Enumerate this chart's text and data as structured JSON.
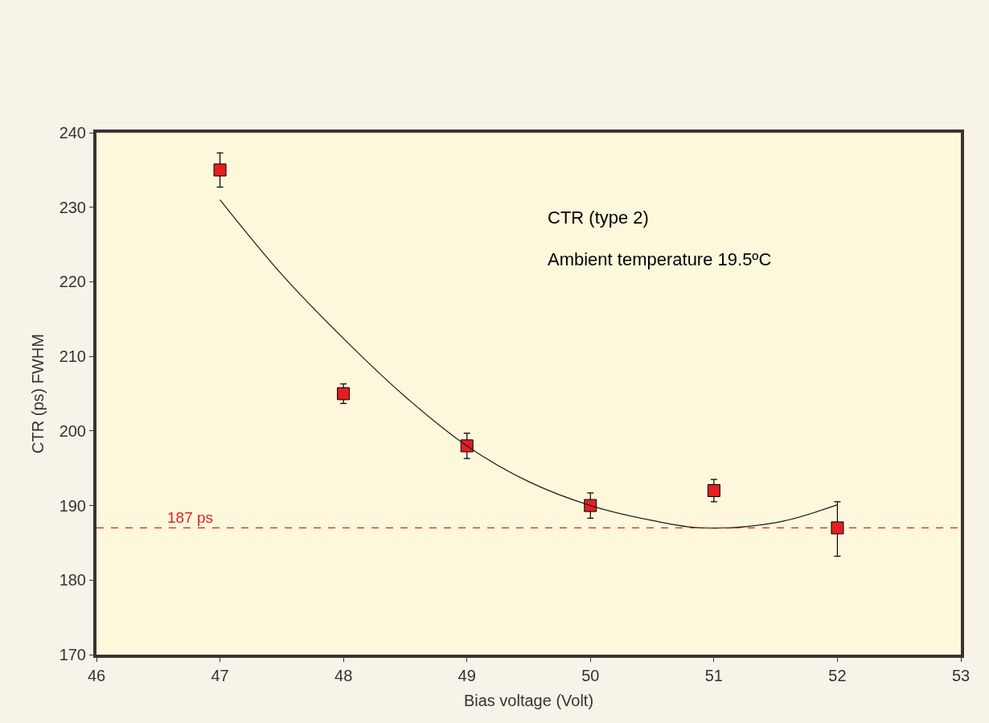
{
  "chart_data": {
    "type": "scatter",
    "xlabel": "Bias voltage (Volt)",
    "ylabel": "CTR (ps) FWHM",
    "annotations": [
      "CTR (type 2)",
      "Ambient temperature 19.5ºC"
    ],
    "series": [
      {
        "color": "#e31e24",
        "marker": "square",
        "x": [
          47,
          48,
          49,
          50,
          51,
          52
        ],
        "values": [
          235,
          205,
          198,
          190,
          192,
          187
        ],
        "errors": [
          2.3,
          1.3,
          1.7,
          1.7,
          1.5,
          [
            183.2,
            190.5
          ]
        ]
      },
      {
        "type": "line",
        "color": "#1a1a1a",
        "marker": "none",
        "line_style": "solid",
        "x": [
          47,
          47.5,
          48,
          48.5,
          49,
          49.5,
          50,
          50.5,
          50.9,
          51.5,
          52
        ],
        "values": [
          231,
          221,
          212.4,
          204.6,
          198,
          193.2,
          190,
          188,
          187,
          187.7,
          190.1
        ]
      }
    ],
    "ref_lines": [
      {
        "axis": "y",
        "value": 187,
        "label": "187 ps",
        "color": "#e31e24",
        "line_style": "dashed"
      }
    ],
    "xlim": [
      46,
      53
    ],
    "xticks": [
      46,
      47,
      48,
      49,
      50,
      51,
      52,
      53
    ],
    "ylim": [
      170,
      240
    ],
    "yticks": [
      170,
      180,
      190,
      200,
      210,
      220,
      230,
      240
    ],
    "grid": false
  }
}
